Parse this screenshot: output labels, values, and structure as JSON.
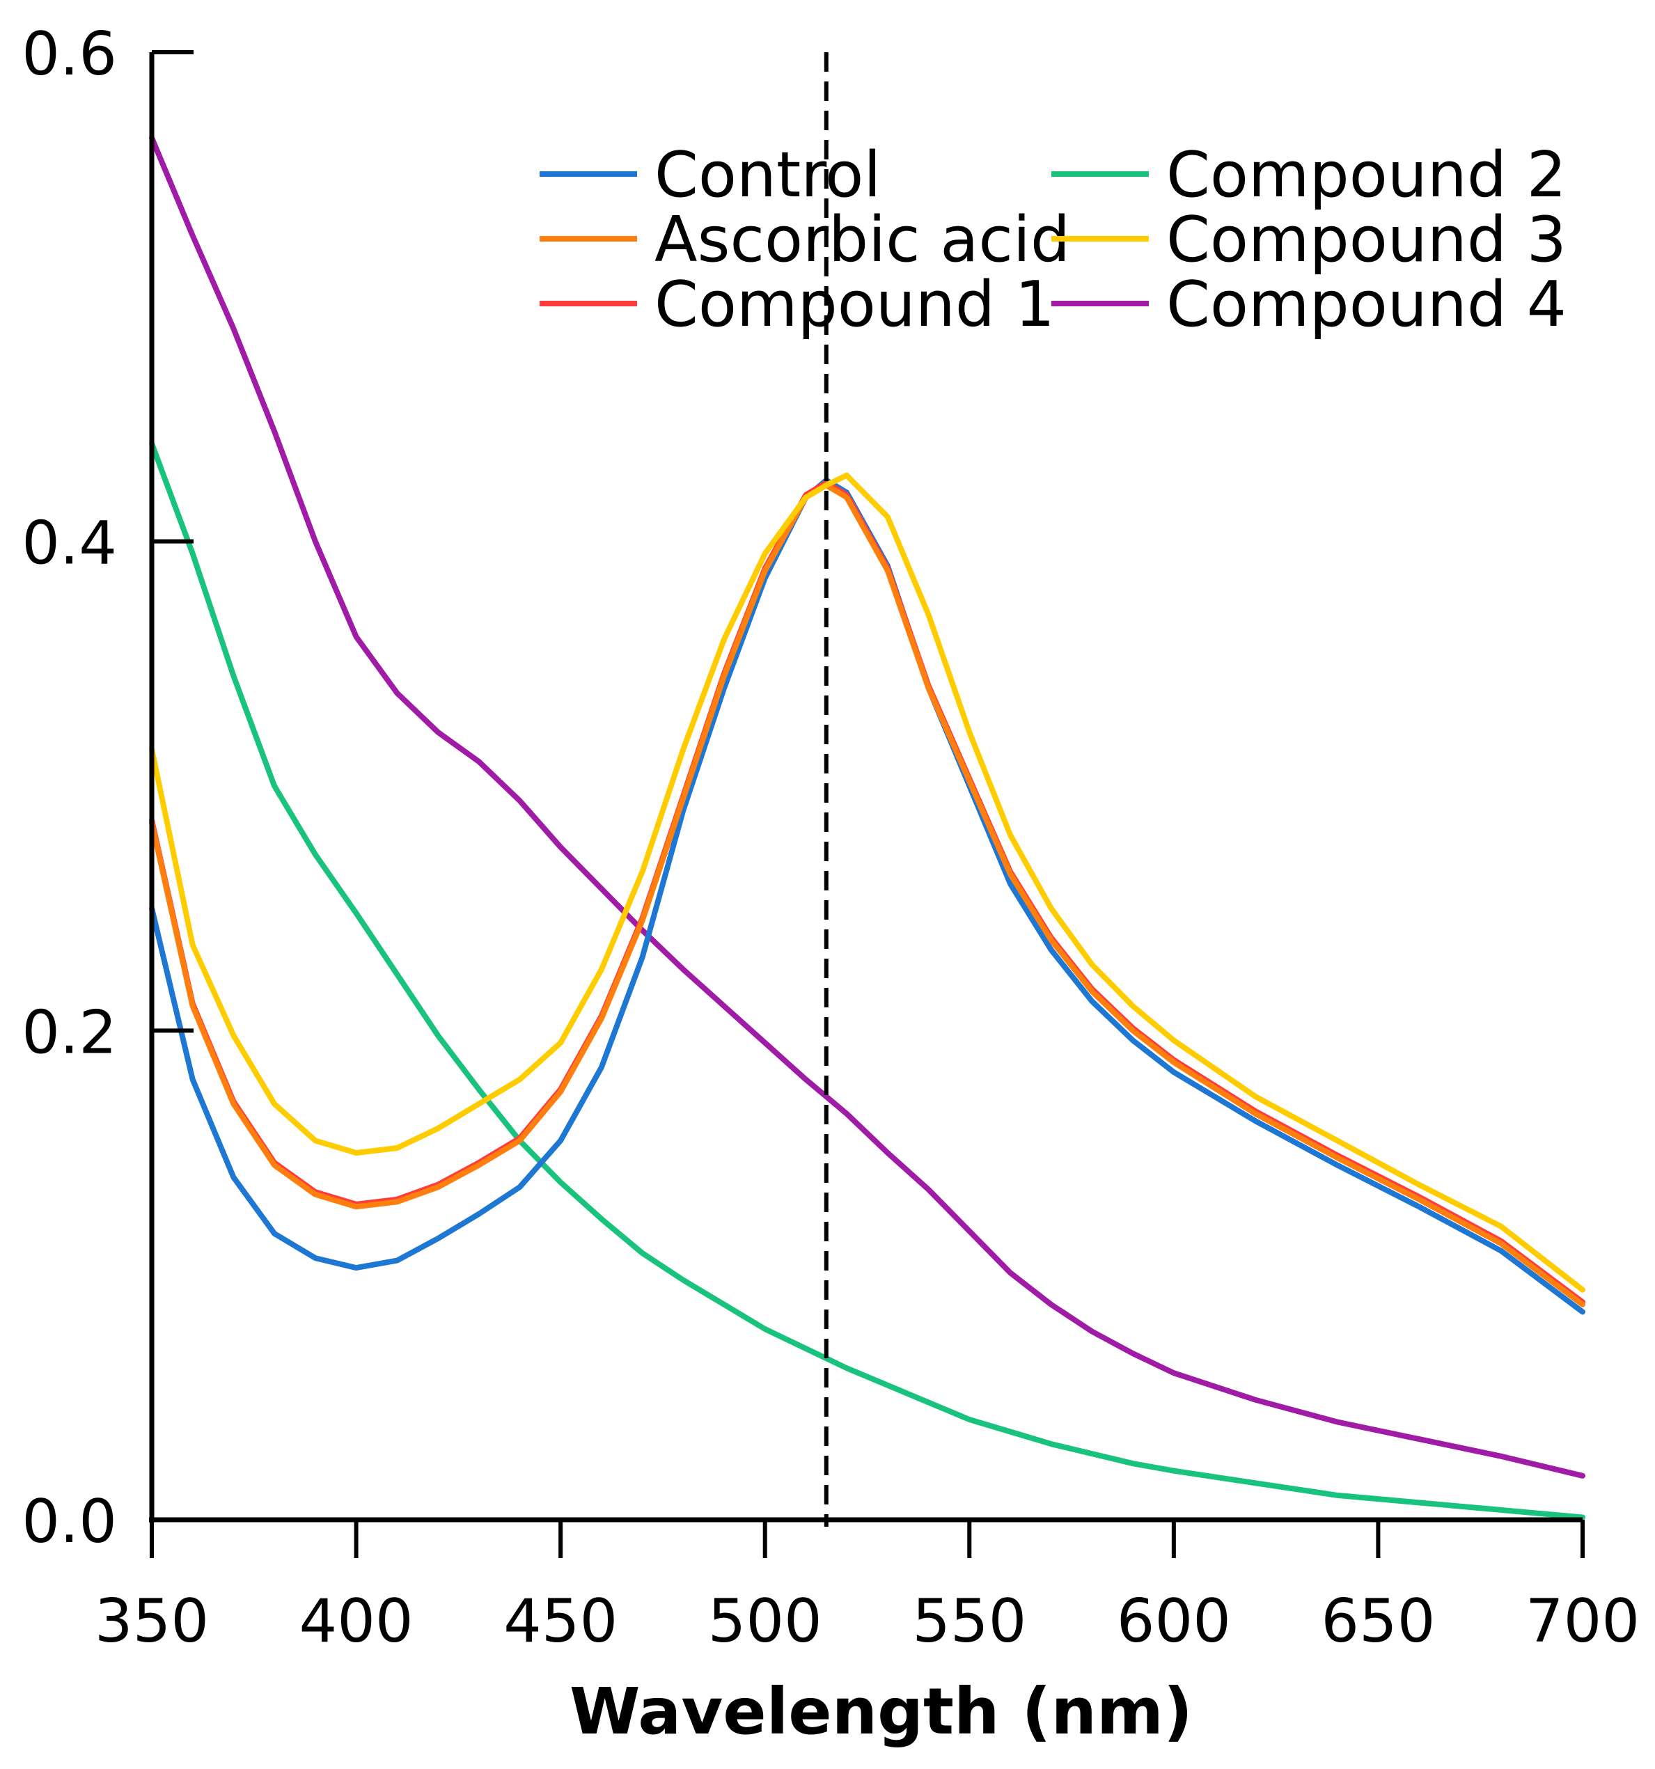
{
  "chart_data": {
    "type": "line",
    "title": "",
    "xlabel": "Wavelength (nm)",
    "ylabel": "",
    "xlim": [
      350,
      700
    ],
    "ylim": [
      0,
      0.6
    ],
    "xticks": [
      350,
      400,
      450,
      500,
      550,
      600,
      650,
      700
    ],
    "xtick_labels": [
      "350",
      "400",
      "450",
      "500",
      "550",
      "600",
      "650",
      "700"
    ],
    "yticks": [
      0,
      0.2,
      0.4,
      0.6
    ],
    "ytick_labels": [
      "0.0",
      "0.2",
      "0.4",
      "0.6"
    ],
    "grid": false,
    "legend_position": "top-right",
    "reference_line": {
      "x": 515,
      "style": "dashed",
      "color": "#000000"
    },
    "x": [
      350,
      360,
      370,
      380,
      390,
      400,
      410,
      420,
      430,
      440,
      450,
      460,
      470,
      480,
      490,
      500,
      510,
      515,
      520,
      530,
      540,
      550,
      560,
      570,
      580,
      590,
      600,
      620,
      640,
      660,
      680,
      700
    ],
    "series": [
      {
        "name": "Control",
        "color": "#1f77d4",
        "values": [
          0.25,
          0.18,
          0.14,
          0.117,
          0.107,
          0.103,
          0.106,
          0.115,
          0.125,
          0.136,
          0.155,
          0.185,
          0.23,
          0.29,
          0.34,
          0.385,
          0.418,
          0.425,
          0.42,
          0.39,
          0.34,
          0.3,
          0.26,
          0.233,
          0.212,
          0.196,
          0.183,
          0.163,
          0.145,
          0.128,
          0.11,
          0.085
        ]
      },
      {
        "name": "Ascorbic acid",
        "color": "#ff7f0e",
        "values": [
          0.285,
          0.21,
          0.17,
          0.145,
          0.133,
          0.128,
          0.13,
          0.136,
          0.145,
          0.155,
          0.175,
          0.205,
          0.245,
          0.295,
          0.345,
          0.388,
          0.418,
          0.423,
          0.418,
          0.388,
          0.34,
          0.302,
          0.264,
          0.237,
          0.216,
          0.2,
          0.187,
          0.166,
          0.148,
          0.131,
          0.113,
          0.088
        ]
      },
      {
        "name": "Compound 1",
        "color": "#ff3b3b",
        "values": [
          0.286,
          0.211,
          0.171,
          0.146,
          0.134,
          0.129,
          0.131,
          0.137,
          0.146,
          0.156,
          0.176,
          0.206,
          0.246,
          0.296,
          0.346,
          0.389,
          0.419,
          0.424,
          0.419,
          0.389,
          0.341,
          0.303,
          0.265,
          0.238,
          0.217,
          0.201,
          0.188,
          0.167,
          0.149,
          0.132,
          0.114,
          0.089
        ]
      },
      {
        "name": "Compound 2",
        "color": "#19c27d",
        "values": [
          0.44,
          0.395,
          0.345,
          0.3,
          0.272,
          0.248,
          0.223,
          0.198,
          0.176,
          0.155,
          0.138,
          0.123,
          0.109,
          0.098,
          0.088,
          0.078,
          0.07,
          0.066,
          0.062,
          0.055,
          0.048,
          0.041,
          0.036,
          0.031,
          0.027,
          0.023,
          0.02,
          0.015,
          0.01,
          0.007,
          0.004,
          0.001
        ]
      },
      {
        "name": "Compound 3",
        "color": "#ffcc00",
        "values": [
          0.315,
          0.235,
          0.198,
          0.17,
          0.155,
          0.15,
          0.152,
          0.16,
          0.17,
          0.18,
          0.195,
          0.225,
          0.265,
          0.315,
          0.36,
          0.395,
          0.418,
          0.423,
          0.427,
          0.41,
          0.37,
          0.322,
          0.28,
          0.25,
          0.227,
          0.21,
          0.196,
          0.173,
          0.155,
          0.137,
          0.12,
          0.094
        ]
      },
      {
        "name": "Compound 4",
        "color": "#a01ca6",
        "values": [
          0.565,
          0.525,
          0.487,
          0.445,
          0.4,
          0.361,
          0.338,
          0.322,
          0.31,
          0.294,
          0.275,
          0.258,
          0.241,
          0.225,
          0.21,
          0.195,
          0.18,
          0.173,
          0.166,
          0.15,
          0.135,
          0.118,
          0.101,
          0.088,
          0.077,
          0.068,
          0.06,
          0.049,
          0.04,
          0.033,
          0.026,
          0.018
        ]
      }
    ]
  }
}
